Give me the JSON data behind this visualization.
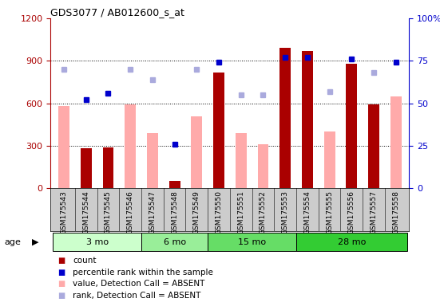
{
  "title": "GDS3077 / AB012600_s_at",
  "samples": [
    "GSM175543",
    "GSM175544",
    "GSM175545",
    "GSM175546",
    "GSM175547",
    "GSM175548",
    "GSM175549",
    "GSM175550",
    "GSM175551",
    "GSM175552",
    "GSM175553",
    "GSM175554",
    "GSM175555",
    "GSM175556",
    "GSM175557",
    "GSM175558"
  ],
  "age_groups": [
    {
      "label": "3 mo",
      "start": 0,
      "end": 3
    },
    {
      "label": "6 mo",
      "start": 4,
      "end": 6
    },
    {
      "label": "15 mo",
      "start": 7,
      "end": 10
    },
    {
      "label": "28 mo",
      "start": 11,
      "end": 15
    }
  ],
  "age_colors": [
    "#ccffcc",
    "#99ee99",
    "#66dd66",
    "#33cc33"
  ],
  "count_values": [
    null,
    280,
    290,
    null,
    null,
    50,
    null,
    820,
    null,
    null,
    990,
    970,
    null,
    880,
    590,
    null
  ],
  "count_absent": [
    580,
    null,
    null,
    590,
    390,
    null,
    510,
    null,
    390,
    310,
    null,
    null,
    400,
    null,
    null,
    650
  ],
  "percentile_rank": [
    null,
    52,
    56,
    null,
    null,
    26,
    null,
    74,
    null,
    null,
    77,
    77,
    null,
    76,
    null,
    74
  ],
  "rank_absent": [
    70,
    null,
    null,
    70,
    64,
    null,
    70,
    null,
    55,
    55,
    null,
    null,
    57,
    null,
    68,
    null
  ],
  "left_ylim": [
    0,
    1200
  ],
  "left_yticks": [
    0,
    300,
    600,
    900,
    1200
  ],
  "right_ylim": [
    0,
    100
  ],
  "right_yticks": [
    0,
    25,
    50,
    75,
    100
  ],
  "bar_width": 0.5,
  "count_color": "#aa0000",
  "count_absent_color": "#ffaaaa",
  "percentile_color": "#0000cc",
  "rank_absent_color": "#aaaadd",
  "plot_bg": "#ffffff",
  "xtick_bg": "#cccccc",
  "grid_color": "#000000"
}
